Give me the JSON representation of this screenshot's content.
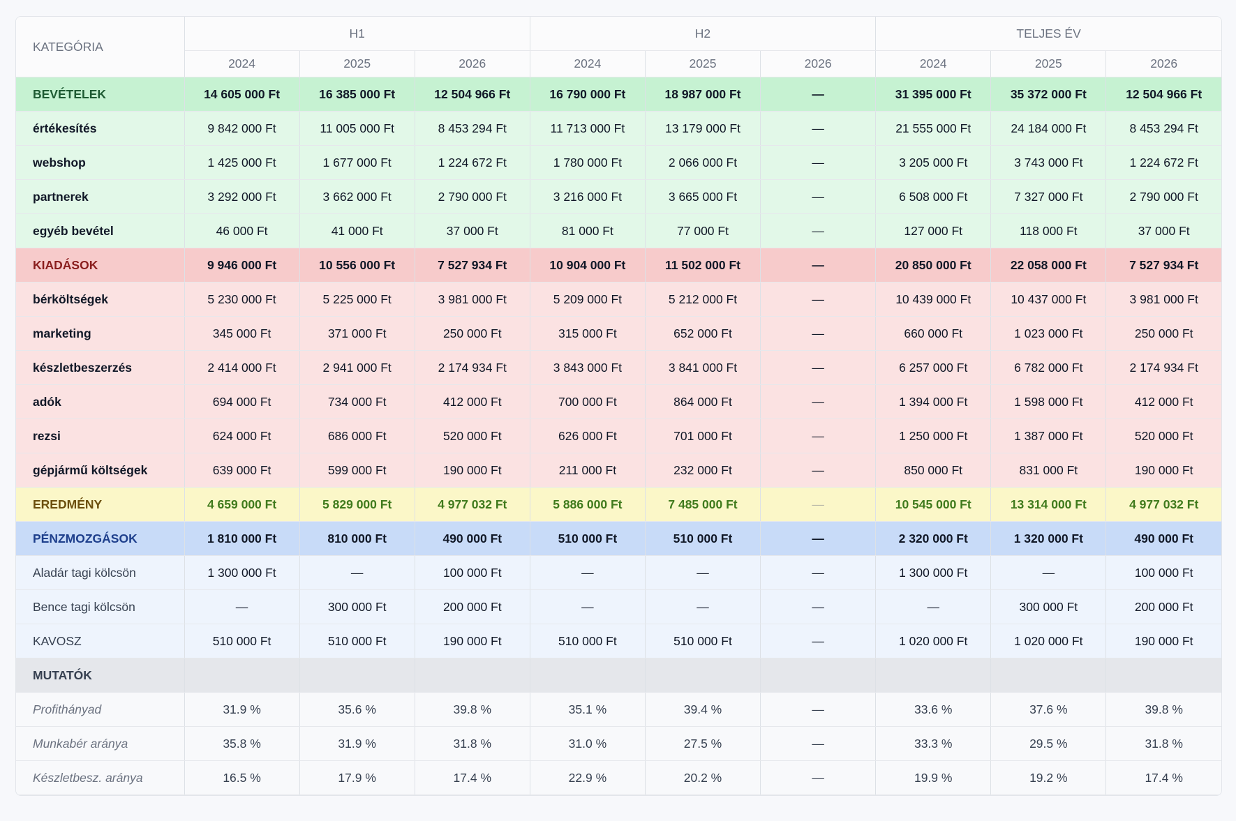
{
  "header": {
    "category": "KATEGÓRIA",
    "groups": [
      "H1",
      "H2",
      "TELJES ÉV"
    ],
    "years": [
      "2024",
      "2025",
      "2026",
      "2024",
      "2025",
      "2026",
      "2024",
      "2025",
      "2026"
    ]
  },
  "rows": [
    {
      "type": "rev-head",
      "label": "BEVÉTELEK",
      "values": [
        "14 605 000 Ft",
        "16 385 000 Ft",
        "12 504 966 Ft",
        "16 790 000 Ft",
        "18 987 000 Ft",
        "—",
        "31 395 000 Ft",
        "35 372 000 Ft",
        "12 504 966 Ft"
      ]
    },
    {
      "type": "rev",
      "label": "értékesítés",
      "values": [
        "9 842 000 Ft",
        "11 005 000 Ft",
        "8 453 294 Ft",
        "11 713 000 Ft",
        "13 179 000 Ft",
        "—",
        "21 555 000 Ft",
        "24 184 000 Ft",
        "8 453 294 Ft"
      ]
    },
    {
      "type": "rev",
      "label": "webshop",
      "values": [
        "1 425 000 Ft",
        "1 677 000 Ft",
        "1 224 672 Ft",
        "1 780 000 Ft",
        "2 066 000 Ft",
        "—",
        "3 205 000 Ft",
        "3 743 000 Ft",
        "1 224 672 Ft"
      ]
    },
    {
      "type": "rev",
      "label": "partnerek",
      "values": [
        "3 292 000 Ft",
        "3 662 000 Ft",
        "2 790 000 Ft",
        "3 216 000 Ft",
        "3 665 000 Ft",
        "—",
        "6 508 000 Ft",
        "7 327 000 Ft",
        "2 790 000 Ft"
      ]
    },
    {
      "type": "rev",
      "label": "egyéb bevétel",
      "values": [
        "46 000 Ft",
        "41 000 Ft",
        "37 000 Ft",
        "81 000 Ft",
        "77 000 Ft",
        "—",
        "127 000 Ft",
        "118 000 Ft",
        "37 000 Ft"
      ]
    },
    {
      "type": "exp-head",
      "label": "KIADÁSOK",
      "values": [
        "9 946 000 Ft",
        "10 556 000 Ft",
        "7 527 934 Ft",
        "10 904 000 Ft",
        "11 502 000 Ft",
        "—",
        "20 850 000 Ft",
        "22 058 000 Ft",
        "7 527 934 Ft"
      ]
    },
    {
      "type": "exp",
      "label": "bérköltségek",
      "values": [
        "5 230 000 Ft",
        "5 225 000 Ft",
        "3 981 000 Ft",
        "5 209 000 Ft",
        "5 212 000 Ft",
        "—",
        "10 439 000 Ft",
        "10 437 000 Ft",
        "3 981 000 Ft"
      ]
    },
    {
      "type": "exp",
      "label": "marketing",
      "values": [
        "345 000 Ft",
        "371 000 Ft",
        "250 000 Ft",
        "315 000 Ft",
        "652 000 Ft",
        "—",
        "660 000 Ft",
        "1 023 000 Ft",
        "250 000 Ft"
      ]
    },
    {
      "type": "exp",
      "label": "készletbeszerzés",
      "values": [
        "2 414 000 Ft",
        "2 941 000 Ft",
        "2 174 934 Ft",
        "3 843 000 Ft",
        "3 841 000 Ft",
        "—",
        "6 257 000 Ft",
        "6 782 000 Ft",
        "2 174 934 Ft"
      ]
    },
    {
      "type": "exp",
      "label": "adók",
      "values": [
        "694 000 Ft",
        "734 000 Ft",
        "412 000 Ft",
        "700 000 Ft",
        "864 000 Ft",
        "—",
        "1 394 000 Ft",
        "1 598 000 Ft",
        "412 000 Ft"
      ]
    },
    {
      "type": "exp",
      "label": "rezsi",
      "values": [
        "624 000 Ft",
        "686 000 Ft",
        "520 000 Ft",
        "626 000 Ft",
        "701 000 Ft",
        "—",
        "1 250 000 Ft",
        "1 387 000 Ft",
        "520 000 Ft"
      ]
    },
    {
      "type": "exp",
      "label": "gépjármű költségek",
      "values": [
        "639 000 Ft",
        "599 000 Ft",
        "190 000 Ft",
        "211 000 Ft",
        "232 000 Ft",
        "—",
        "850 000 Ft",
        "831 000 Ft",
        "190 000 Ft"
      ]
    },
    {
      "type": "res",
      "label": "EREDMÉNY",
      "values": [
        "4 659 000 Ft",
        "5 829 000 Ft",
        "4 977 032 Ft",
        "5 886 000 Ft",
        "7 485 000 Ft",
        "—",
        "10 545 000 Ft",
        "13 314 000 Ft",
        "4 977 032 Ft"
      ]
    },
    {
      "type": "cash-head",
      "label": "PÉNZMOZGÁSOK",
      "values": [
        "1 810 000 Ft",
        "810 000 Ft",
        "490 000 Ft",
        "510 000 Ft",
        "510 000 Ft",
        "—",
        "2 320 000 Ft",
        "1 320 000 Ft",
        "490 000 Ft"
      ]
    },
    {
      "type": "cash",
      "label": "Aladár tagi kölcsön",
      "values": [
        "1 300 000 Ft",
        "—",
        "100 000 Ft",
        "—",
        "—",
        "—",
        "1 300 000 Ft",
        "—",
        "100 000 Ft"
      ]
    },
    {
      "type": "cash",
      "label": "Bence tagi kölcsön",
      "values": [
        "—",
        "300 000 Ft",
        "200 000 Ft",
        "—",
        "—",
        "—",
        "—",
        "300 000 Ft",
        "200 000 Ft"
      ]
    },
    {
      "type": "cash",
      "label": "KAVOSZ",
      "values": [
        "510 000 Ft",
        "510 000 Ft",
        "190 000 Ft",
        "510 000 Ft",
        "510 000 Ft",
        "—",
        "1 020 000 Ft",
        "1 020 000 Ft",
        "190 000 Ft"
      ]
    },
    {
      "type": "kpi-head",
      "label": "MUTATÓK",
      "values": [
        "",
        "",
        "",
        "",
        "",
        "",
        "",
        "",
        ""
      ]
    },
    {
      "type": "kpi",
      "label": "Profithányad",
      "values": [
        "31.9 %",
        "35.6 %",
        "39.8 %",
        "35.1 %",
        "39.4 %",
        "—",
        "33.6 %",
        "37.6 %",
        "39.8 %"
      ]
    },
    {
      "type": "kpi",
      "label": "Munkabér aránya",
      "values": [
        "35.8 %",
        "31.9 %",
        "31.8 %",
        "31.0 %",
        "27.5 %",
        "—",
        "33.3 %",
        "29.5 %",
        "31.8 %"
      ]
    },
    {
      "type": "kpi",
      "label": "Készletbesz. aránya",
      "values": [
        "16.5 %",
        "17.9 %",
        "17.4 %",
        "22.9 %",
        "20.2 %",
        "—",
        "19.9 %",
        "19.2 %",
        "17.4 %"
      ]
    }
  ]
}
